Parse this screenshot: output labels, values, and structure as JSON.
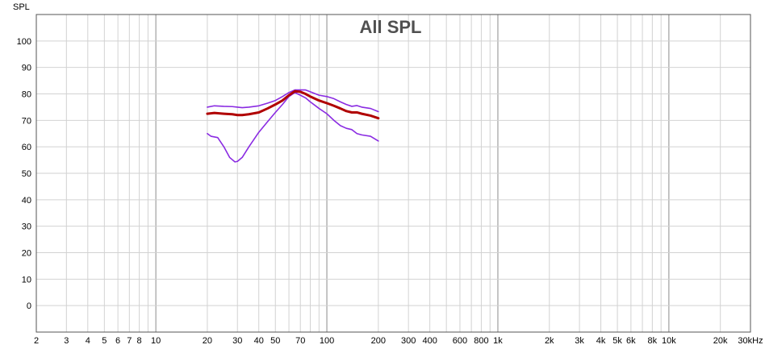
{
  "chart_data": {
    "type": "line",
    "title": "All SPL",
    "ylabel": "SPL",
    "xlabel": "",
    "x_scale": "log",
    "xlim": [
      2,
      30000
    ],
    "ylim": [
      -10,
      110
    ],
    "grid": true,
    "y_ticks": [
      0,
      10,
      20,
      30,
      40,
      50,
      60,
      70,
      80,
      90,
      100
    ],
    "x_ticks": [
      {
        "value": 2,
        "label": "2"
      },
      {
        "value": 3,
        "label": "3"
      },
      {
        "value": 4,
        "label": "4"
      },
      {
        "value": 5,
        "label": "5"
      },
      {
        "value": 6,
        "label": "6"
      },
      {
        "value": 7,
        "label": "7"
      },
      {
        "value": 8,
        "label": "8"
      },
      {
        "value": 10,
        "label": "10"
      },
      {
        "value": 20,
        "label": "20"
      },
      {
        "value": 30,
        "label": "30"
      },
      {
        "value": 40,
        "label": "40"
      },
      {
        "value": 50,
        "label": "50"
      },
      {
        "value": 70,
        "label": "70"
      },
      {
        "value": 100,
        "label": "100"
      },
      {
        "value": 200,
        "label": "200"
      },
      {
        "value": 300,
        "label": "300"
      },
      {
        "value": 400,
        "label": "400"
      },
      {
        "value": 600,
        "label": "600"
      },
      {
        "value": 800,
        "label": "800"
      },
      {
        "value": 1000,
        "label": "1k"
      },
      {
        "value": 2000,
        "label": "2k"
      },
      {
        "value": 3000,
        "label": "3k"
      },
      {
        "value": 4000,
        "label": "4k"
      },
      {
        "value": 5000,
        "label": "5k"
      },
      {
        "value": 6000,
        "label": "6k"
      },
      {
        "value": 8000,
        "label": "8k"
      },
      {
        "value": 10000,
        "label": "10k"
      },
      {
        "value": 20000,
        "label": "20k"
      },
      {
        "value": 30000,
        "label": "30kHz"
      }
    ],
    "series": [
      {
        "color": "#8a2be2",
        "width": 1.6,
        "x": [
          20,
          22,
          25,
          28,
          30,
          32,
          35,
          40,
          45,
          50,
          55,
          60,
          65,
          70,
          75,
          80,
          90,
          100,
          110,
          120,
          130,
          140,
          150,
          160,
          180,
          200
        ],
        "y": [
          75,
          75.5,
          75.3,
          75.2,
          75,
          74.8,
          75,
          75.5,
          76.5,
          77.5,
          79,
          80.5,
          81.5,
          81.5,
          81.5,
          80.8,
          79.5,
          79,
          78.2,
          77,
          76,
          75.3,
          75.6,
          75,
          74.5,
          73.3
        ]
      },
      {
        "color": "#8a2be2",
        "width": 1.6,
        "x": [
          20,
          21,
          23,
          25,
          27,
          29,
          30,
          32,
          35,
          40,
          45,
          50,
          55,
          60,
          65,
          70,
          75,
          80,
          90,
          100,
          110,
          120,
          130,
          140,
          150,
          160,
          180,
          200
        ],
        "y": [
          65,
          64,
          63.5,
          60,
          56,
          54.3,
          54.5,
          56,
          60,
          65.5,
          69.5,
          73,
          76,
          79,
          80.5,
          79.5,
          78.5,
          77,
          74.5,
          72.5,
          70,
          68,
          67,
          66.5,
          65,
          64.5,
          64,
          62.2
        ]
      },
      {
        "color": "#b00000",
        "width": 3,
        "x": [
          20,
          22,
          25,
          28,
          30,
          32,
          35,
          40,
          45,
          50,
          55,
          60,
          65,
          70,
          75,
          80,
          90,
          100,
          110,
          120,
          130,
          140,
          150,
          160,
          180,
          200
        ],
        "y": [
          72.5,
          72.8,
          72.5,
          72.3,
          72,
          72,
          72.3,
          73,
          74.5,
          76,
          77.5,
          79.5,
          81,
          80.8,
          80,
          79,
          77.5,
          76.5,
          75.5,
          74.5,
          73.5,
          73,
          73,
          72.5,
          71.8,
          70.8
        ]
      }
    ]
  }
}
